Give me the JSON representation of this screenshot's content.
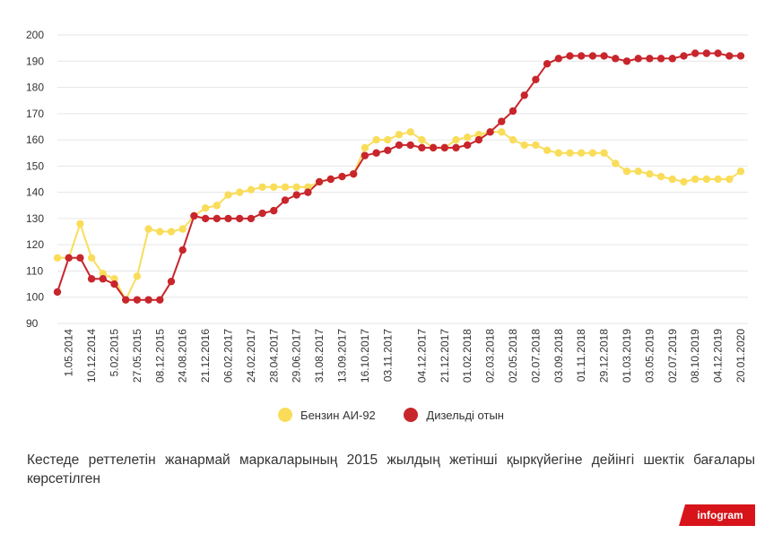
{
  "chart_data": {
    "type": "line",
    "ylim": [
      90,
      200
    ],
    "yticks": [
      90,
      100,
      110,
      120,
      130,
      140,
      150,
      160,
      170,
      180,
      190,
      200
    ],
    "x_labels": [
      "1.05.2014",
      "10.12.2014",
      "5.02.2015",
      "27.05.2015",
      "08.12.2015",
      "24.08.2016",
      "21.12.2016",
      "06.02.2017",
      "24.02.2017",
      "28.04.2017",
      "29.06.2017",
      "31.08.2017",
      "13.09.2017",
      "16.10.2017",
      "03.11.2017",
      "04.12.2017",
      "21.12.2017",
      "01.02.2018",
      "02.03.2018",
      "02.05.2018",
      "02.07.2018",
      "03.09.2018",
      "01.11.2018",
      "29.12.2018",
      "01.03.2019",
      "03.05.2019",
      "02.07.2019",
      "08.10.2019",
      "04.12.2019",
      "20.01.2020"
    ],
    "legend_position": "bottom",
    "series": [
      {
        "name": "Бензин АИ-92",
        "color": "#f9dd5a",
        "values": [
          115,
          115,
          128,
          115,
          109,
          107,
          99,
          108,
          126,
          125,
          125,
          126,
          131,
          134,
          135,
          139,
          140,
          141,
          142,
          142,
          142,
          142,
          142,
          144,
          145,
          146,
          147,
          157,
          160,
          160,
          162,
          163,
          160,
          157,
          157,
          160,
          161,
          162,
          163,
          163,
          160,
          158,
          158,
          156,
          155,
          155,
          155,
          155,
          155,
          151,
          148,
          148,
          147,
          146,
          145,
          144,
          145,
          145,
          145,
          145,
          148
        ]
      },
      {
        "name": "Дизельді отын",
        "color": "#c8252c",
        "values": [
          102,
          115,
          115,
          107,
          107,
          105,
          99,
          99,
          99,
          99,
          106,
          118,
          131,
          130,
          130,
          130,
          130,
          130,
          132,
          133,
          137,
          139,
          140,
          144,
          145,
          146,
          147,
          154,
          155,
          156,
          158,
          158,
          157,
          157,
          157,
          157,
          158,
          160,
          163,
          167,
          171,
          177,
          183,
          189,
          191,
          192,
          192,
          192,
          192,
          191,
          190,
          191,
          191,
          191,
          191,
          192,
          193,
          193,
          193,
          192,
          192
        ]
      }
    ]
  },
  "caption": "Кестеде реттелетін жанармай маркаларының 2015 жылдың жетінші қыркүйегіне дейінгі шектік бағалары көрсетілген",
  "brand": "infogram"
}
